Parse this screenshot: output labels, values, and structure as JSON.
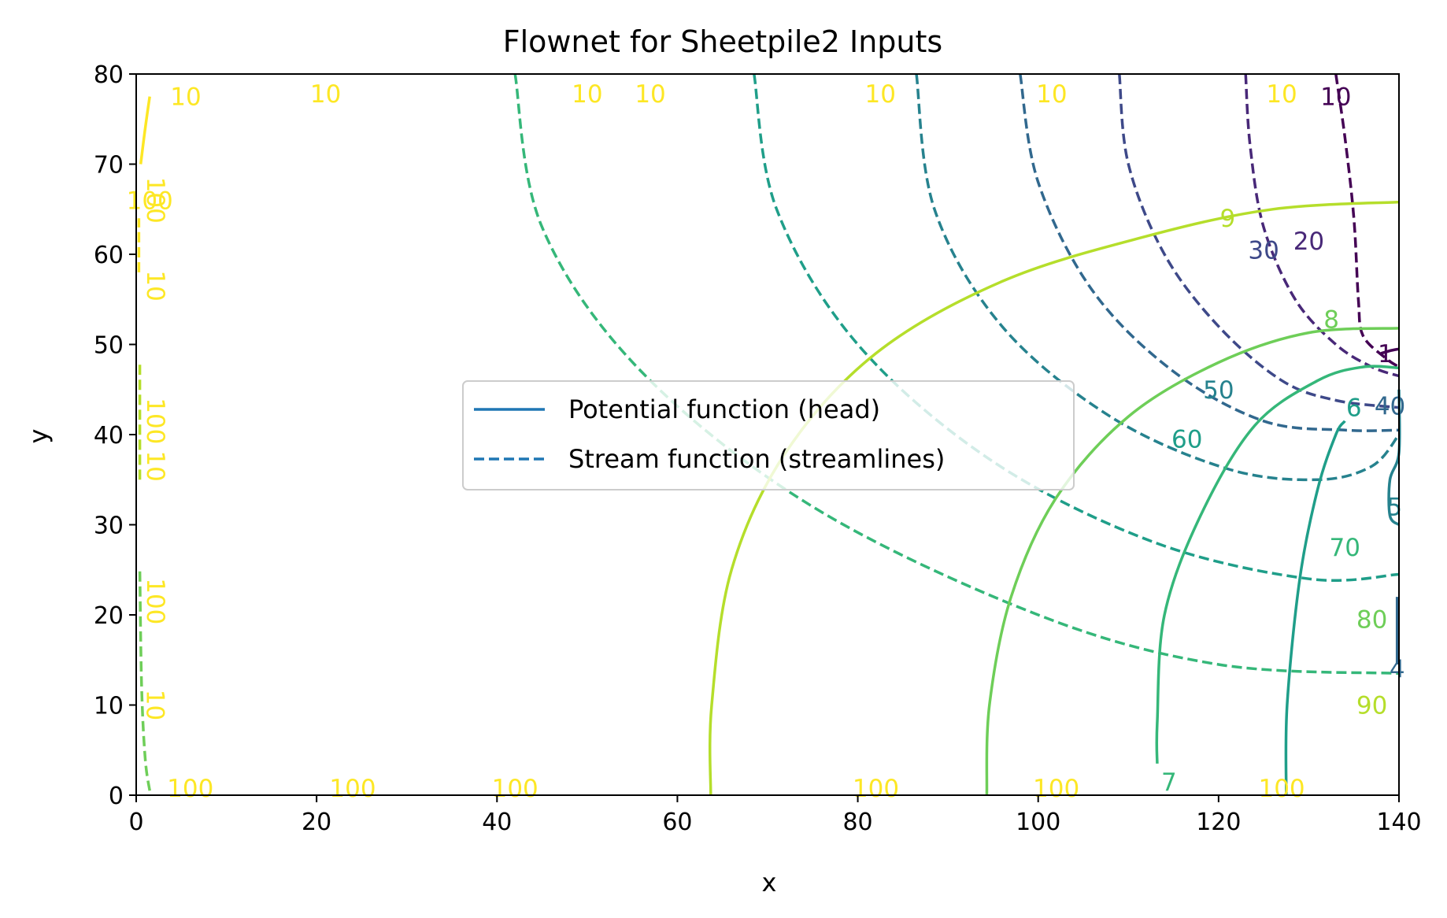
{
  "chart_data": {
    "type": "line",
    "title": "Flownet for Sheetpile2 Inputs",
    "xlabel": "x",
    "ylabel": "y",
    "xlim": [
      0,
      140
    ],
    "ylim": [
      0,
      80
    ],
    "x_ticks": [
      0,
      20,
      40,
      60,
      80,
      100,
      120,
      140
    ],
    "y_ticks": [
      0,
      10,
      20,
      30,
      40,
      50,
      60,
      70,
      80
    ],
    "legend_position": "center",
    "legend": [
      {
        "label": "Potential function (head)",
        "style": "solid",
        "color": "#1f77b4"
      },
      {
        "label": "Stream function (streamlines)",
        "style": "dashed",
        "color": "#1f77b4"
      }
    ],
    "potential_lines": [
      {
        "label": "9",
        "color": "#b5de2b",
        "points": [
          [
            63.7,
            0
          ],
          [
            63.8,
            10
          ],
          [
            66,
            25
          ],
          [
            72,
            38
          ],
          [
            82,
            49
          ],
          [
            96,
            57
          ],
          [
            112,
            62
          ],
          [
            126,
            65
          ],
          [
            140,
            65.8
          ]
        ],
        "label_at": [
          121,
          64
        ]
      },
      {
        "label": "8",
        "color": "#6ece58",
        "points": [
          [
            94.3,
            0
          ],
          [
            94.6,
            10
          ],
          [
            97,
            22
          ],
          [
            102,
            33
          ],
          [
            110,
            42
          ],
          [
            120,
            48
          ],
          [
            130,
            51.3
          ],
          [
            140,
            51.8
          ]
        ],
        "label_at": [
          132.5,
          52.8
        ]
      },
      {
        "label": "7",
        "color": "#35b779",
        "points": [
          [
            113.2,
            3.5
          ],
          [
            113.2,
            8
          ],
          [
            114,
            20
          ],
          [
            118,
            31
          ],
          [
            124,
            41
          ],
          [
            131,
            46
          ],
          [
            136,
            47.5
          ],
          [
            140,
            47.4
          ]
        ],
        "label_at": [
          114.5,
          1.5
        ]
      },
      {
        "label": "6",
        "color": "#1f9e89",
        "points": [
          [
            127.5,
            0
          ],
          [
            127.6,
            10
          ],
          [
            129,
            24
          ],
          [
            131,
            34
          ],
          [
            133,
            40
          ],
          [
            134,
            41.5
          ]
        ],
        "label_at": [
          135,
          43
        ]
      },
      {
        "label": "5",
        "color": "#26828e",
        "points": [
          [
            140,
            45
          ],
          [
            140,
            38
          ],
          [
            139,
            35
          ],
          [
            139,
            31
          ],
          [
            140,
            30
          ]
        ],
        "label_at": [
          139.5,
          32
        ]
      },
      {
        "label": "4",
        "color": "#31688e",
        "points": [
          [
            139.8,
            22
          ],
          [
            139.8,
            14.5
          ]
        ],
        "label_at": [
          139.8,
          14
        ]
      },
      {
        "label": "1",
        "color": "#440154",
        "points": [
          [
            140,
            49.5
          ],
          [
            139,
            49.3
          ],
          [
            138,
            49.0
          ]
        ],
        "label_at": [
          138.5,
          49
        ]
      },
      {
        "label": "10",
        "color": "#fde725",
        "points": [
          [
            0.5,
            70
          ],
          [
            1,
            74
          ],
          [
            1.5,
            77.5
          ]
        ],
        "label_at": [
          5.5,
          77.5
        ]
      }
    ],
    "stream_lines": [
      {
        "label": "10",
        "color": "#440154",
        "points": [
          [
            133,
            80
          ],
          [
            134,
            73
          ],
          [
            135,
            64
          ],
          [
            135.5,
            55
          ],
          [
            136,
            51
          ],
          [
            138.5,
            48.5
          ],
          [
            140,
            47.5
          ]
        ],
        "label_at": [
          133,
          77.5
        ]
      },
      {
        "label": "20",
        "color": "#482878",
        "points": [
          [
            123,
            80
          ],
          [
            123.5,
            72
          ],
          [
            125,
            63
          ],
          [
            128.5,
            55
          ],
          [
            133,
            50
          ],
          [
            137,
            47.5
          ],
          [
            140,
            46.5
          ]
        ],
        "label_at": [
          130,
          61.5
        ]
      },
      {
        "label": "30",
        "color": "#3e4989",
        "points": [
          [
            109,
            80
          ],
          [
            110,
            70
          ],
          [
            114,
            60
          ],
          [
            120,
            52
          ],
          [
            127,
            46
          ],
          [
            133,
            43.8
          ],
          [
            140,
            43
          ]
        ],
        "label_at": [
          125,
          60.5
        ]
      },
      {
        "label": "40",
        "color": "#31688e",
        "points": [
          [
            98,
            80
          ],
          [
            100,
            68
          ],
          [
            106,
            56
          ],
          [
            115,
            47
          ],
          [
            125,
            41.5
          ],
          [
            134,
            40.5
          ],
          [
            140,
            40.5
          ]
        ],
        "label_at": [
          139,
          43.2
        ]
      },
      {
        "label": "50",
        "color": "#26828e",
        "points": [
          [
            86.5,
            80
          ],
          [
            88.5,
            65
          ],
          [
            96,
            52
          ],
          [
            108,
            42
          ],
          [
            121,
            36.2
          ],
          [
            131,
            35
          ],
          [
            137,
            36.5
          ],
          [
            140,
            40
          ]
        ],
        "label_at": [
          120,
          45
        ]
      },
      {
        "label": "60",
        "color": "#1f9e89",
        "points": [
          [
            68.5,
            80
          ],
          [
            71,
            65
          ],
          [
            80,
            50
          ],
          [
            95,
            37
          ],
          [
            113,
            28
          ],
          [
            130,
            24
          ],
          [
            140,
            24.5
          ]
        ],
        "label_at": [
          116.5,
          39.5
        ]
      },
      {
        "label": "70",
        "color": "#35b779",
        "points": [
          [
            42,
            80
          ],
          [
            45,
            63
          ],
          [
            56,
            47
          ],
          [
            75,
            32
          ],
          [
            100,
            20
          ],
          [
            120,
            14.5
          ],
          [
            140,
            13.5
          ]
        ],
        "label_at": [
          134,
          27.5
        ]
      },
      {
        "label": "80",
        "color": "#6ece58",
        "points": [
          [
            1.5,
            0.5
          ],
          [
            1,
            4
          ],
          [
            0.6,
            12
          ],
          [
            0.4,
            25
          ]
        ],
        "label_at": [
          137,
          19.5
        ]
      },
      {
        "label": "90",
        "color": "#b5de2b",
        "points": [
          [
            0.4,
            35
          ],
          [
            0.4,
            42
          ],
          [
            0.4,
            48
          ]
        ],
        "label_at": [
          137,
          10
        ]
      },
      {
        "label": "100",
        "color": "#fde725",
        "points": [
          [
            0.3,
            58
          ],
          [
            0.3,
            64
          ]
        ],
        "label_at": [
          1.5,
          66
        ]
      }
    ],
    "edge_labels_top": [
      {
        "label": "10",
        "at": [
          21,
          77.8
        ]
      },
      {
        "label": "10",
        "at": [
          50,
          77.8
        ]
      },
      {
        "label": "10",
        "at": [
          57,
          77.8
        ]
      },
      {
        "label": "10",
        "at": [
          82.5,
          77.8
        ]
      },
      {
        "label": "10",
        "at": [
          101.5,
          77.8
        ]
      },
      {
        "label": "10",
        "at": [
          127,
          77.8
        ]
      }
    ],
    "edge_labels_bottom": [
      {
        "label": "100",
        "at": [
          6,
          0.8
        ]
      },
      {
        "label": "100",
        "at": [
          24,
          0.8
        ]
      },
      {
        "label": "100",
        "at": [
          42,
          0.8
        ]
      },
      {
        "label": "100",
        "at": [
          82,
          0.8
        ]
      },
      {
        "label": "100",
        "at": [
          102,
          0.8
        ]
      },
      {
        "label": "100",
        "at": [
          127,
          0.8
        ]
      }
    ],
    "edge_labels_left": [
      {
        "label": "100",
        "at": [
          1.2,
          66
        ]
      },
      {
        "label": "10",
        "at": [
          1.2,
          56.5
        ]
      },
      {
        "label": "100",
        "at": [
          1.2,
          41.5
        ]
      },
      {
        "label": "10",
        "at": [
          1.2,
          36.5
        ]
      },
      {
        "label": "100",
        "at": [
          1.2,
          21.5
        ]
      },
      {
        "label": "10",
        "at": [
          1.2,
          10
        ]
      }
    ]
  }
}
